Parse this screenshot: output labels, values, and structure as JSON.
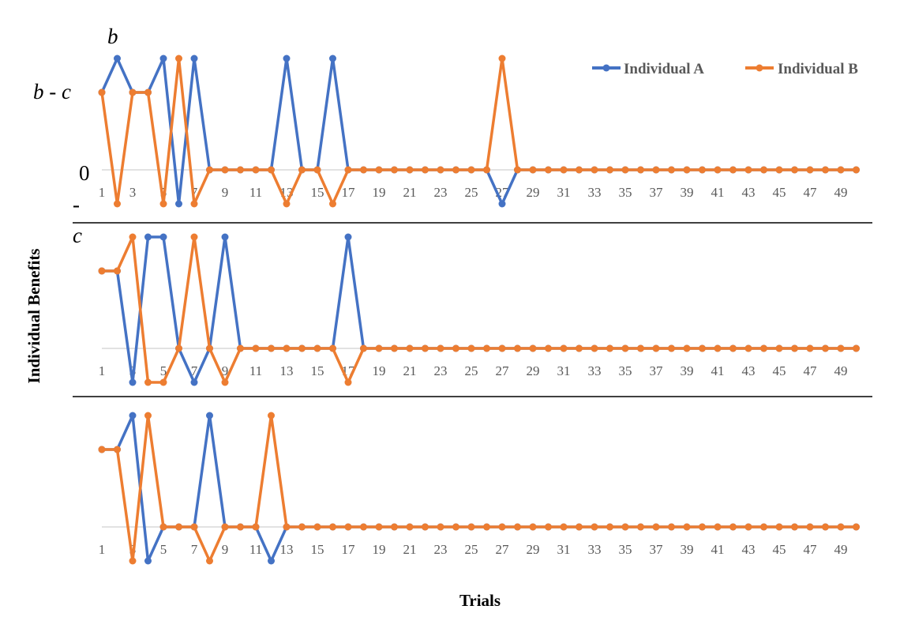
{
  "chart_data": {
    "type": "line",
    "xlabel": "Trials",
    "ylabel": "Individual Benefits",
    "y_levels": [
      "b",
      "b-c",
      "0",
      "-c"
    ],
    "y_tick_labels": [
      "b",
      "b - c",
      "0",
      "-",
      "c"
    ],
    "x_tick_labels": [
      "1",
      "3",
      "5",
      "7",
      "9",
      "11",
      "13",
      "15",
      "17",
      "19",
      "21",
      "23",
      "25",
      "27",
      "29",
      "31",
      "33",
      "35",
      "37",
      "39",
      "41",
      "43",
      "45",
      "47",
      "49"
    ],
    "x_range": [
      1,
      50
    ],
    "legend": {
      "placement": "top-right",
      "entries": [
        "Individual A",
        "Individual B"
      ]
    },
    "colors": {
      "Individual A": "#4472C4",
      "Individual B": "#ED7D31"
    },
    "panels": [
      {
        "series": [
          {
            "name": "Individual A",
            "values": [
              "b-c",
              "b",
              "b-c",
              "b-c",
              "b",
              "-c",
              "b",
              "0",
              "0",
              "0",
              "0",
              "0",
              "b",
              "0",
              "0",
              "b",
              "0",
              "0",
              "0",
              "0",
              "0",
              "0",
              "0",
              "0",
              "0",
              "0",
              "-c",
              "0",
              "0",
              "0",
              "0",
              "0",
              "0",
              "0",
              "0",
              "0",
              "0",
              "0",
              "0",
              "0",
              "0",
              "0",
              "0",
              "0",
              "0",
              "0",
              "0",
              "0",
              "0",
              "0"
            ]
          },
          {
            "name": "Individual B",
            "values": [
              "b-c",
              "-c",
              "b-c",
              "b-c",
              "-c",
              "b",
              "-c",
              "0",
              "0",
              "0",
              "0",
              "0",
              "-c",
              "0",
              "0",
              "-c",
              "0",
              "0",
              "0",
              "0",
              "0",
              "0",
              "0",
              "0",
              "0",
              "0",
              "b",
              "0",
              "0",
              "0",
              "0",
              "0",
              "0",
              "0",
              "0",
              "0",
              "0",
              "0",
              "0",
              "0",
              "0",
              "0",
              "0",
              "0",
              "0",
              "0",
              "0",
              "0",
              "0",
              "0"
            ]
          }
        ]
      },
      {
        "series": [
          {
            "name": "Individual A",
            "values": [
              "b-c",
              "b-c",
              "-c",
              "b",
              "b",
              "0",
              "-c",
              "0",
              "b",
              "0",
              "0",
              "0",
              "0",
              "0",
              "0",
              "0",
              "b",
              "0",
              "0",
              "0",
              "0",
              "0",
              "0",
              "0",
              "0",
              "0",
              "0",
              "0",
              "0",
              "0",
              "0",
              "0",
              "0",
              "0",
              "0",
              "0",
              "0",
              "0",
              "0",
              "0",
              "0",
              "0",
              "0",
              "0",
              "0",
              "0",
              "0",
              "0",
              "0",
              "0"
            ]
          },
          {
            "name": "Individual B",
            "values": [
              "b-c",
              "b-c",
              "b",
              "-c",
              "-c",
              "0",
              "b",
              "0",
              "-c",
              "0",
              "0",
              "0",
              "0",
              "0",
              "0",
              "0",
              "-c",
              "0",
              "0",
              "0",
              "0",
              "0",
              "0",
              "0",
              "0",
              "0",
              "0",
              "0",
              "0",
              "0",
              "0",
              "0",
              "0",
              "0",
              "0",
              "0",
              "0",
              "0",
              "0",
              "0",
              "0",
              "0",
              "0",
              "0",
              "0",
              "0",
              "0",
              "0",
              "0",
              "0"
            ]
          }
        ]
      },
      {
        "series": [
          {
            "name": "Individual A",
            "values": [
              "b-c",
              "b-c",
              "b",
              "-c",
              "0",
              "0",
              "0",
              "b",
              "0",
              "0",
              "0",
              "-c",
              "0",
              "0",
              "0",
              "0",
              "0",
              "0",
              "0",
              "0",
              "0",
              "0",
              "0",
              "0",
              "0",
              "0",
              "0",
              "0",
              "0",
              "0",
              "0",
              "0",
              "0",
              "0",
              "0",
              "0",
              "0",
              "0",
              "0",
              "0",
              "0",
              "0",
              "0",
              "0",
              "0",
              "0",
              "0",
              "0",
              "0",
              "0"
            ]
          },
          {
            "name": "Individual B",
            "values": [
              "b-c",
              "b-c",
              "-c",
              "b",
              "0",
              "0",
              "0",
              "-c",
              "0",
              "0",
              "0",
              "b",
              "0",
              "0",
              "0",
              "0",
              "0",
              "0",
              "0",
              "0",
              "0",
              "0",
              "0",
              "0",
              "0",
              "0",
              "0",
              "0",
              "0",
              "0",
              "0",
              "0",
              "0",
              "0",
              "0",
              "0",
              "0",
              "0",
              "0",
              "0",
              "0",
              "0",
              "0",
              "0",
              "0",
              "0",
              "0",
              "0",
              "0",
              "0"
            ]
          }
        ]
      }
    ]
  }
}
